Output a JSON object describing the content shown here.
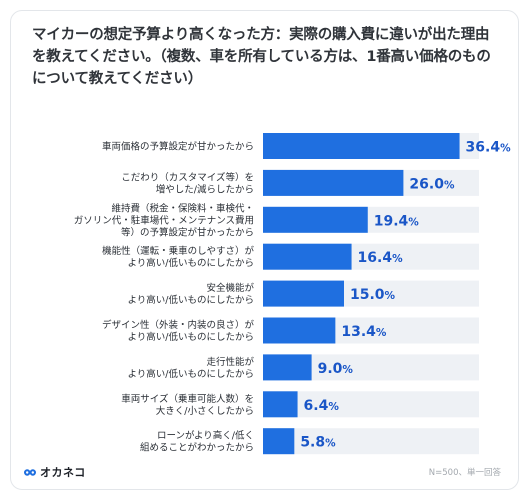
{
  "title": "マイカーの想定予算より高くなった方：実際の購入費に違いが出た理由を教えてください。（複数、車を所有している方は、1番高い価格のものについて教えてください）",
  "brand": "オカネコ",
  "note": "N=500、単一回答",
  "colors": {
    "bar": "#1f6fe0",
    "track": "#eef1f5",
    "value": "#1a56c7",
    "label": "#2a2f36"
  },
  "chart_data": {
    "type": "bar",
    "orientation": "horizontal",
    "xlim": [
      0,
      40
    ],
    "unit": "%",
    "categories": [
      [
        "車両価格の予算設定が甘かったから"
      ],
      [
        "こだわり（カスタマイズ等）を",
        "増やした/減らしたから"
      ],
      [
        "維持費（税金・保険料・車検代・",
        "ガソリン代・駐車場代・メンテナンス費用",
        "等）の予算設定が甘かったから"
      ],
      [
        "機能性（運転・乗車のしやすさ）が",
        "より高い/低いものにしたから"
      ],
      [
        "安全機能が",
        "より高い/低いものにしたから"
      ],
      [
        "デザイン性（外装・内装の良さ）が",
        "より高い/低いものにしたから"
      ],
      [
        "走行性能が",
        "より高い/低いものにしたから"
      ],
      [
        "車両サイズ（乗車可能人数）を",
        "大きく/小さくしたから"
      ],
      [
        "ローンがより高く/低く",
        "組めることがわかったから"
      ]
    ],
    "values": [
      36.4,
      26.0,
      19.4,
      16.4,
      15.0,
      13.4,
      9.0,
      6.4,
      5.8
    ],
    "value_labels": [
      "36.4",
      "26.0",
      "19.4",
      "16.4",
      "15.0",
      "13.4",
      "9.0",
      "6.4",
      "5.8"
    ]
  }
}
